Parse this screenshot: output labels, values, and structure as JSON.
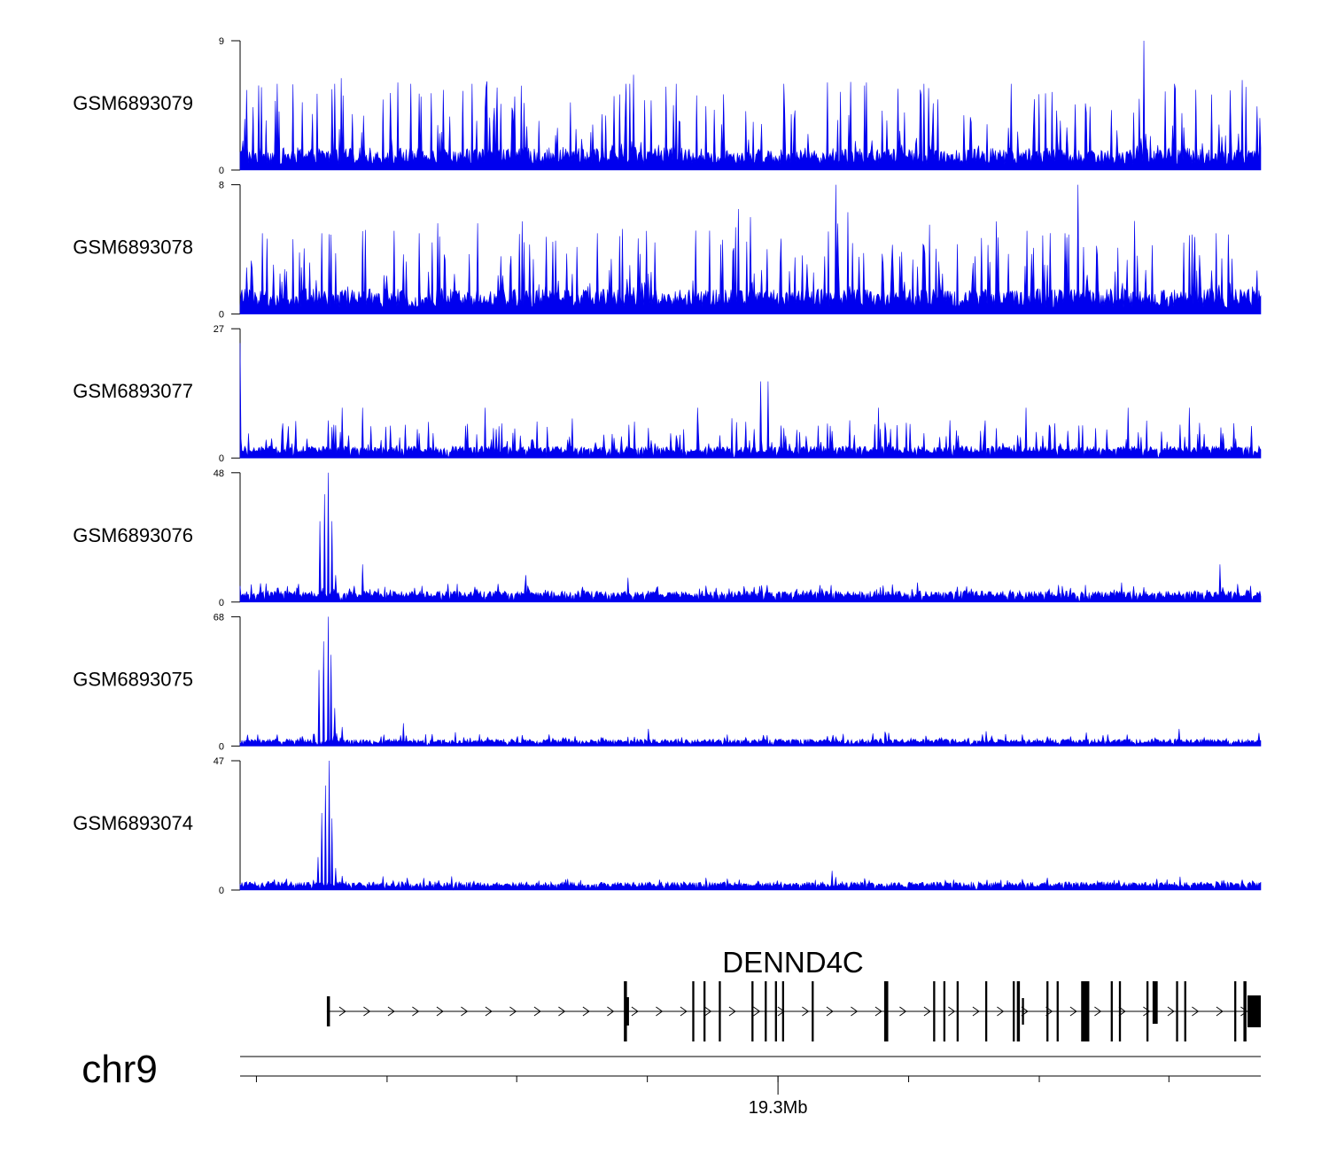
{
  "chart_data": {
    "type": "area",
    "signal_color": "#0000ee",
    "series": [
      {
        "name": "GSM6893079",
        "ymax": 9,
        "ymin": 0,
        "baseline": 1.0,
        "noise": 0.9,
        "spike_density": 0.18,
        "spike_height": 5.2,
        "peaks": [
          {
            "x": 0.036,
            "v": 6
          },
          {
            "x": 0.093,
            "v": 6
          },
          {
            "x": 0.167,
            "v": 6
          },
          {
            "x": 0.227,
            "v": 6
          },
          {
            "x": 0.378,
            "v": 6
          },
          {
            "x": 0.382,
            "v": 6
          },
          {
            "x": 0.427,
            "v": 6
          },
          {
            "x": 0.533,
            "v": 6
          },
          {
            "x": 0.67,
            "v": 6
          },
          {
            "x": 0.755,
            "v": 6
          },
          {
            "x": 0.885,
            "v": 9
          },
          {
            "x": 0.915,
            "v": 6
          }
        ]
      },
      {
        "name": "GSM6893078",
        "ymax": 8,
        "ymin": 0,
        "baseline": 1.0,
        "noise": 0.9,
        "spike_density": 0.2,
        "spike_height": 4.5,
        "peaks": [
          {
            "x": 0.022,
            "v": 5
          },
          {
            "x": 0.08,
            "v": 5
          },
          {
            "x": 0.175,
            "v": 5
          },
          {
            "x": 0.35,
            "v": 5
          },
          {
            "x": 0.488,
            "v": 6.5
          },
          {
            "x": 0.5,
            "v": 6
          },
          {
            "x": 0.584,
            "v": 8
          },
          {
            "x": 0.595,
            "v": 6.3
          },
          {
            "x": 0.808,
            "v": 5
          },
          {
            "x": 0.821,
            "v": 8
          },
          {
            "x": 0.956,
            "v": 5
          }
        ]
      },
      {
        "name": "GSM6893077",
        "ymax": 27,
        "ymin": 0,
        "baseline": 2.5,
        "noise": 1.5,
        "spike_density": 0.14,
        "spike_height": 10,
        "peaks": [
          {
            "x": 0.0,
            "v": 24
          },
          {
            "x": 0.1,
            "v": 10.5
          },
          {
            "x": 0.12,
            "v": 10.5
          },
          {
            "x": 0.24,
            "v": 10.5
          },
          {
            "x": 0.448,
            "v": 10.5
          },
          {
            "x": 0.51,
            "v": 16
          },
          {
            "x": 0.517,
            "v": 16
          },
          {
            "x": 0.625,
            "v": 10.5
          },
          {
            "x": 0.77,
            "v": 10.5
          },
          {
            "x": 0.87,
            "v": 10.5
          },
          {
            "x": 0.93,
            "v": 10.5
          }
        ]
      },
      {
        "name": "GSM6893076",
        "ymax": 48,
        "ymin": 0,
        "baseline": 4,
        "noise": 2.5,
        "spike_density": 0.1,
        "spike_height": 6,
        "peaks": [
          {
            "x": 0.078,
            "v": 30
          },
          {
            "x": 0.083,
            "v": 40
          },
          {
            "x": 0.086,
            "v": 48
          },
          {
            "x": 0.09,
            "v": 30
          },
          {
            "x": 0.094,
            "v": 10
          },
          {
            "x": 0.12,
            "v": 14
          },
          {
            "x": 0.28,
            "v": 10
          },
          {
            "x": 0.38,
            "v": 9
          },
          {
            "x": 0.96,
            "v": 14
          }
        ]
      },
      {
        "name": "GSM6893075",
        "ymax": 68,
        "ymin": 0,
        "baseline": 3,
        "noise": 2.5,
        "spike_density": 0.1,
        "spike_height": 7,
        "peaks": [
          {
            "x": 0.077,
            "v": 40
          },
          {
            "x": 0.082,
            "v": 55
          },
          {
            "x": 0.086,
            "v": 68
          },
          {
            "x": 0.089,
            "v": 48
          },
          {
            "x": 0.093,
            "v": 20
          },
          {
            "x": 0.1,
            "v": 10
          },
          {
            "x": 0.16,
            "v": 12
          },
          {
            "x": 0.4,
            "v": 9
          },
          {
            "x": 0.92,
            "v": 9
          }
        ]
      },
      {
        "name": "GSM6893074",
        "ymax": 47,
        "ymin": 0,
        "baseline": 2.5,
        "noise": 2.0,
        "spike_density": 0.08,
        "spike_height": 4,
        "peaks": [
          {
            "x": 0.076,
            "v": 12
          },
          {
            "x": 0.08,
            "v": 28
          },
          {
            "x": 0.084,
            "v": 38
          },
          {
            "x": 0.087,
            "v": 47
          },
          {
            "x": 0.09,
            "v": 26
          },
          {
            "x": 0.094,
            "v": 8
          },
          {
            "x": 0.14,
            "v": 5
          },
          {
            "x": 0.58,
            "v": 7
          }
        ]
      }
    ],
    "gene": {
      "name": "DENND4C",
      "strand": "+",
      "start": 0.085,
      "end": 1.0,
      "exons": [
        {
          "x": 0.085,
          "w": 0.003,
          "kind": "start"
        },
        {
          "x": 0.376,
          "w": 0.003,
          "kind": "tall"
        },
        {
          "x": 0.378,
          "w": 0.003,
          "kind": "mid"
        },
        {
          "x": 0.443,
          "w": 0.002,
          "kind": "tall"
        },
        {
          "x": 0.454,
          "w": 0.002,
          "kind": "tall"
        },
        {
          "x": 0.469,
          "w": 0.002,
          "kind": "tall"
        },
        {
          "x": 0.501,
          "w": 0.002,
          "kind": "tall"
        },
        {
          "x": 0.514,
          "w": 0.002,
          "kind": "tall"
        },
        {
          "x": 0.524,
          "w": 0.002,
          "kind": "tall"
        },
        {
          "x": 0.531,
          "w": 0.002,
          "kind": "tall"
        },
        {
          "x": 0.56,
          "w": 0.002,
          "kind": "tall"
        },
        {
          "x": 0.631,
          "w": 0.004,
          "kind": "tall"
        },
        {
          "x": 0.679,
          "w": 0.002,
          "kind": "tall"
        },
        {
          "x": 0.689,
          "w": 0.002,
          "kind": "tall"
        },
        {
          "x": 0.702,
          "w": 0.002,
          "kind": "tall"
        },
        {
          "x": 0.73,
          "w": 0.002,
          "kind": "tall"
        },
        {
          "x": 0.757,
          "w": 0.002,
          "kind": "tall"
        },
        {
          "x": 0.761,
          "w": 0.003,
          "kind": "tall"
        },
        {
          "x": 0.766,
          "w": 0.002,
          "kind": "small"
        },
        {
          "x": 0.79,
          "w": 0.002,
          "kind": "tall"
        },
        {
          "x": 0.8,
          "w": 0.002,
          "kind": "tall"
        },
        {
          "x": 0.824,
          "w": 0.008,
          "kind": "tall"
        },
        {
          "x": 0.853,
          "w": 0.002,
          "kind": "tall"
        },
        {
          "x": 0.861,
          "w": 0.002,
          "kind": "tall"
        },
        {
          "x": 0.888,
          "w": 0.002,
          "kind": "tall"
        },
        {
          "x": 0.894,
          "w": 0.005,
          "kind": "thick"
        },
        {
          "x": 0.917,
          "w": 0.002,
          "kind": "tall"
        },
        {
          "x": 0.925,
          "w": 0.002,
          "kind": "tall"
        },
        {
          "x": 0.974,
          "w": 0.002,
          "kind": "tall"
        },
        {
          "x": 0.983,
          "w": 0.003,
          "kind": "tall"
        },
        {
          "x": 0.987,
          "w": 0.013,
          "kind": "utr"
        }
      ]
    },
    "axis": {
      "chrom": "chr9",
      "tick_positions": [
        0.016,
        0.144,
        0.271,
        0.399,
        0.527,
        0.655,
        0.783,
        0.91
      ],
      "labeled_tick": {
        "x": 0.527,
        "label": "19.3Mb"
      }
    }
  }
}
